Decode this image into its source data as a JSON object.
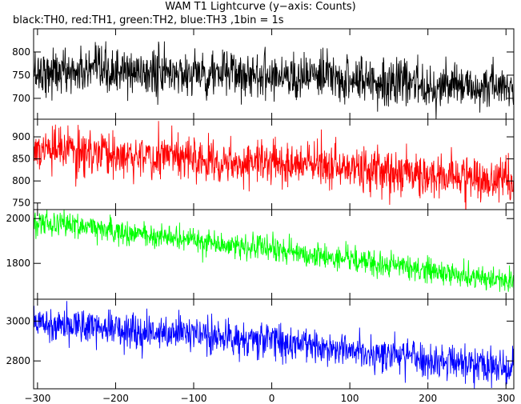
{
  "title": "WAM T1 Lightcurve (y−axis: Counts)",
  "subtitle": "black:TH0, red:TH1, green:TH2, blue:TH3 ,1bin = 1s",
  "chart_data": {
    "type": "line",
    "title": "WAM T1 Lightcurve (y−axis: Counts)",
    "subtitle": "black:TH0, red:TH1, green:TH2, blue:TH3 ,1bin = 1s",
    "xlim": [
      -305,
      310
    ],
    "xticks": [
      -300,
      -200,
      -100,
      0,
      100,
      200,
      300
    ],
    "xtick_labels": [
      "−300",
      "−200",
      "−100",
      "0",
      "100",
      "200",
      "300"
    ],
    "x_step": 1,
    "panels": [
      {
        "series_name": "TH0",
        "color": "#000000",
        "ylim": [
          655,
          850
        ],
        "yticks": [
          700,
          750,
          800
        ],
        "trend": [
          [
            -305,
            758
          ],
          [
            0,
            752
          ],
          [
            310,
            718
          ]
        ],
        "noise": 25
      },
      {
        "series_name": "TH1",
        "color": "#ff0000",
        "ylim": [
          735,
          940
        ],
        "yticks": [
          750,
          800,
          850,
          900
        ],
        "trend": [
          [
            -305,
            870
          ],
          [
            0,
            842
          ],
          [
            310,
            800
          ]
        ],
        "noise": 25
      },
      {
        "series_name": "TH2",
        "color": "#00ff00",
        "ylim": [
          1640,
          2040
        ],
        "yticks": [
          1800,
          2000
        ],
        "trend": [
          [
            -305,
            1990
          ],
          [
            0,
            1860
          ],
          [
            310,
            1720
          ]
        ],
        "noise": 28
      },
      {
        "series_name": "TH3",
        "color": "#0000ff",
        "ylim": [
          2660,
          3110
        ],
        "yticks": [
          2800,
          3000
        ],
        "trend": [
          [
            -305,
            3000
          ],
          [
            0,
            2900
          ],
          [
            310,
            2760
          ]
        ],
        "noise": 45
      }
    ]
  }
}
